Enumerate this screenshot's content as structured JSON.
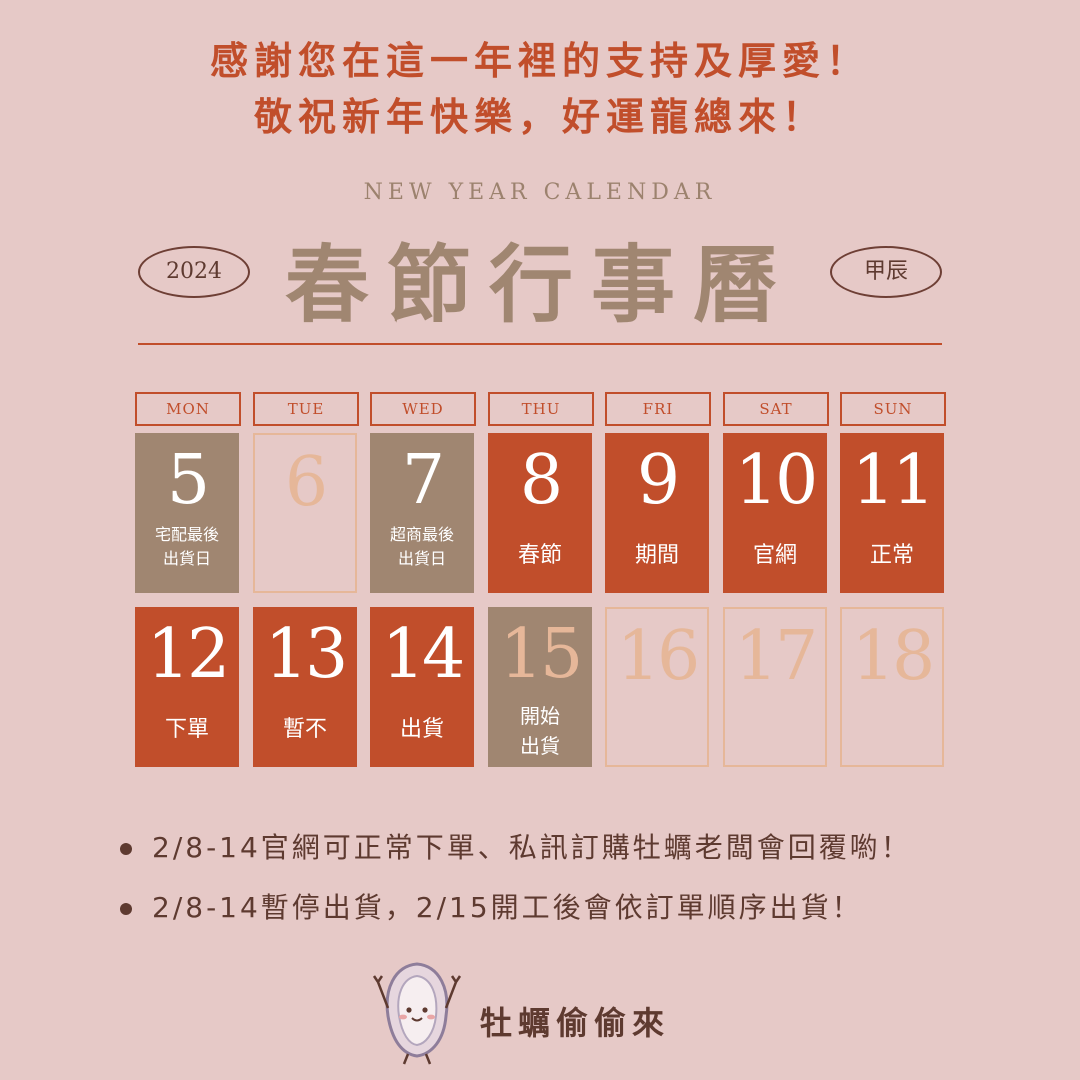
{
  "greeting": {
    "line1": "感謝您在這一年裡的支持及厚愛！",
    "line2": "敬祝新年快樂，好運龍總來！"
  },
  "header": {
    "subtitle": "NEW YEAR CALENDAR",
    "title": "春節行事曆",
    "year": "2024",
    "zodiac": "甲辰"
  },
  "colors": {
    "background": "#e6c9c7",
    "accent_red": "#c14e2b",
    "taupe": "#a08671",
    "outline": "#e6b799",
    "text_dark": "#5e3a30"
  },
  "calendar": {
    "weekdays": [
      "MON",
      "TUE",
      "WED",
      "THU",
      "FRI",
      "SAT",
      "SUN"
    ],
    "row1": [
      {
        "day": "5",
        "line1": "宅配最後",
        "line2": "出貨日"
      },
      {
        "day": "6",
        "line1": "",
        "line2": ""
      },
      {
        "day": "7",
        "line1": "超商最後",
        "line2": "出貨日"
      },
      {
        "day": "8",
        "label": "春節"
      },
      {
        "day": "9",
        "label": "期間"
      },
      {
        "day": "10",
        "label": "官網"
      },
      {
        "day": "11",
        "label": "正常"
      }
    ],
    "row2": [
      {
        "day": "12",
        "label": "下單"
      },
      {
        "day": "13",
        "label": "暫不"
      },
      {
        "day": "14",
        "label": "出貨"
      },
      {
        "day": "15",
        "line1": "開始",
        "line2": "出貨"
      },
      {
        "day": "16"
      },
      {
        "day": "17"
      },
      {
        "day": "18"
      }
    ]
  },
  "notes": [
    "2/8-14官網可正常下單、私訊訂購牡蠣老闆會回覆喲！",
    "2/8-14暫停出貨，2/15開工後會依訂單順序出貨！"
  ],
  "brand": {
    "name": "牡蠣偷偷來",
    "logo_icon": "oyster-mascot-icon"
  }
}
